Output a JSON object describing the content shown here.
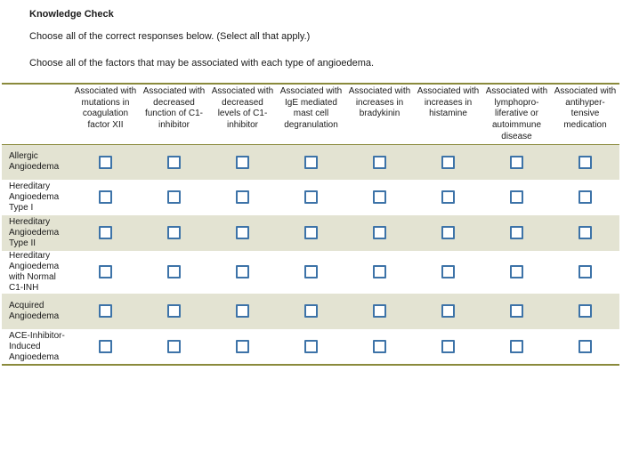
{
  "header": {
    "title": "Knowledge Check",
    "instructions": "Choose all of the correct responses below. (Select all that apply.)",
    "prompt": "Choose all of the factors that may be associated with each type of angioedema."
  },
  "columns": [
    "Associated with mutations in coagulation factor XII",
    "Associated with decreased function of C1-inhibitor",
    "Associated with decreased levels of C1-inhibitor",
    "Associated with IgE mediated mast cell degranulation",
    "Associated with increases in bradykinin",
    "Associated with increases in histamine",
    "Associated with lymphopro-liferative or autoimmune disease",
    "Associated with antihyper-tensive medication"
  ],
  "rows": [
    "Allergic Angioedema",
    "Hereditary Angioedema Type I",
    "Hereditary Angioedema Type II",
    "Hereditary Angioedema with Normal C1-INH",
    "Acquired Angioedema",
    "ACE-Inhibitor-Induced Angioedema"
  ],
  "colors": {
    "border_accent": "#8a8a3c",
    "row_shade": "#e3e3d2",
    "checkbox_border": "#3d73a8"
  }
}
